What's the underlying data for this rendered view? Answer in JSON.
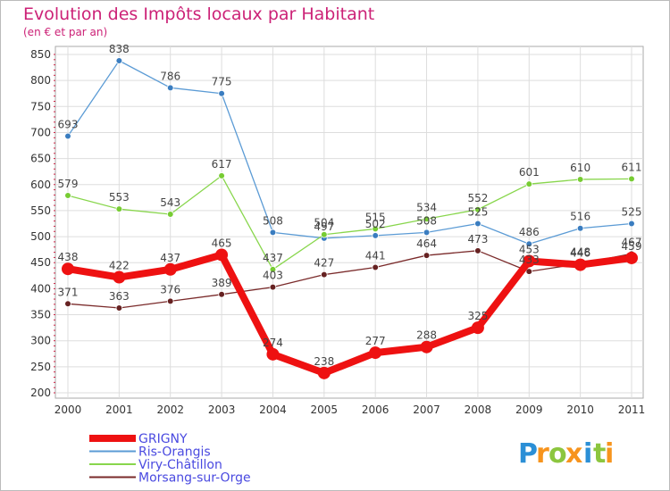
{
  "chart_data": {
    "type": "line",
    "title": "Evolution des Impôts locaux par Habitant",
    "subtitle": "(en € et par an)",
    "xlabel": "",
    "ylabel": "",
    "ylim": [
      200,
      850
    ],
    "yticks": [
      200,
      250,
      300,
      350,
      400,
      450,
      500,
      550,
      600,
      650,
      700,
      750,
      800,
      850
    ],
    "categories": [
      "2000",
      "2001",
      "2002",
      "2003",
      "2004",
      "2005",
      "2006",
      "2007",
      "2008",
      "2009",
      "2010",
      "2011"
    ],
    "series": [
      {
        "name": "Ris-Orangis",
        "color": "#5b9bd5",
        "marker": "#3a7dc0",
        "values": [
          693,
          838,
          786,
          775,
          508,
          497,
          502,
          508,
          525,
          486,
          516,
          525
        ]
      },
      {
        "name": "Viry-Châtillon",
        "color": "#88d64c",
        "marker": "#77cc33",
        "values": [
          579,
          553,
          543,
          617,
          437,
          504,
          515,
          534,
          552,
          601,
          610,
          611
        ]
      },
      {
        "name": "Morsang-sur-Orge",
        "color": "#7a2a2a",
        "marker": "#662222",
        "values": [
          371,
          363,
          376,
          389,
          403,
          427,
          441,
          464,
          473,
          433,
          448,
          467
        ]
      },
      {
        "name": "GRIGNY",
        "color": "#ee1111",
        "marker": "#ee1111",
        "values": [
          438,
          422,
          437,
          465,
          274,
          238,
          277,
          288,
          325,
          453,
          446,
          459
        ]
      }
    ],
    "legend_order": [
      "GRIGNY",
      "Ris-Orangis",
      "Viry-Châtillon",
      "Morsang-sur-Orge"
    ],
    "legend_position": "bottom-left"
  },
  "branding": {
    "logo_letters": [
      "P",
      "r",
      "o",
      "x",
      "i",
      "t",
      "i"
    ],
    "logo_colors": [
      "#2b8fd6",
      "#f7941d",
      "#8cc63f",
      "#f7941d",
      "#2b8fd6",
      "#8cc63f",
      "#f7941d"
    ]
  },
  "colors": {
    "title": "#cc2277",
    "legend_text": "#4a4ae0",
    "plot_border": "#aaaaaa",
    "grid": "#dddddd"
  }
}
